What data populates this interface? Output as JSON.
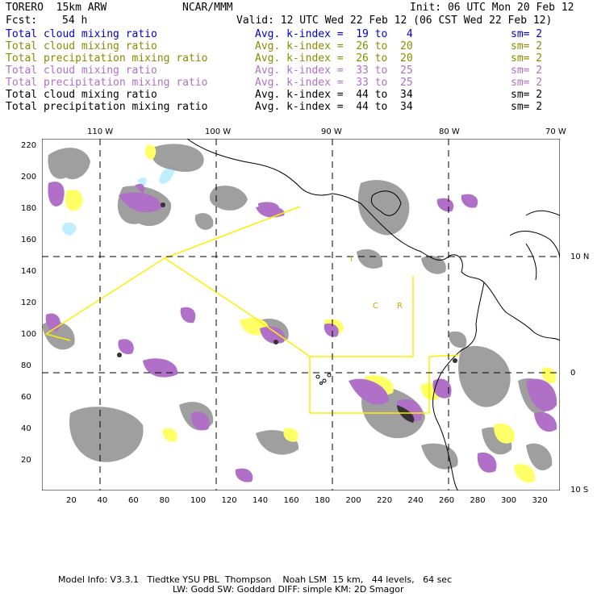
{
  "header": {
    "model": "TORERO  15km ARW",
    "org": "NCAR/MMM",
    "init": "Init: 06 UTC Mon 20 Feb 12",
    "fcst_label": "Fcst:",
    "fcst_value": "54 h",
    "valid": "Valid: 12 UTC Wed 22 Feb 12 (06 CST Wed 22 Feb 12)"
  },
  "legend": [
    {
      "name": "Total cloud mixing ratio",
      "kindex": "Avg. k-index =  19 to   4",
      "sm": "sm= 2",
      "color": "#0000cc"
    },
    {
      "name": "Total cloud mixing ratio",
      "kindex": "Avg. k-index =  26 to  20",
      "sm": "sm= 2",
      "color": "#8a8a00"
    },
    {
      "name": "Total precipitation mixing ratio",
      "kindex": "Avg. k-index =  26 to  20",
      "sm": "sm= 2",
      "color": "#8a8a00"
    },
    {
      "name": "Total cloud mixing ratio",
      "kindex": "Avg. k-index =  33 to  25",
      "sm": "sm= 2",
      "color": "#b070c8"
    },
    {
      "name": "Total precipitation mixing ratio",
      "kindex": "Avg. k-index =  33 to  25",
      "sm": "sm= 2",
      "color": "#b070c8"
    },
    {
      "name": "Total cloud mixing ratio",
      "kindex": "Avg. k-index =  44 to  34",
      "sm": "sm= 2",
      "color": "#000000"
    },
    {
      "name": "Total precipitation mixing ratio",
      "kindex": "Avg. k-index =  44 to  34",
      "sm": "sm= 2",
      "color": "#000000"
    }
  ],
  "axes": {
    "y_ticks": [
      "220",
      "200",
      "180",
      "160",
      "140",
      "120",
      "100",
      "80",
      "60",
      "40",
      "20"
    ],
    "x_ticks": [
      "20",
      "40",
      "60",
      "80",
      "100",
      "120",
      "140",
      "160",
      "180",
      "200",
      "220",
      "240",
      "260",
      "280",
      "300",
      "320"
    ],
    "lon_labels": [
      "110 W",
      "100 W",
      "90 W",
      "80 W",
      "70 W"
    ],
    "lat_labels": [
      "10 N",
      "0",
      "10 S"
    ]
  },
  "map_labels": {
    "ca_marker": "C",
    "ca_marker2": "R",
    "i_marker": "I"
  },
  "colors": {
    "gray_cloud": "#9a9a9a",
    "purple_precip": "#b070c8",
    "yellow_precip": "#ffff66",
    "cyan_cloud": "#bfefff",
    "domain_box": "#ffee00"
  },
  "footer": {
    "line1": "Model Info: V3.3.1   Tiedtke YSU PBL  Thompson    Noah LSM  15 km,   44 levels,   64 sec",
    "line2": "LW: Godd SW: Goddard DIFF: simple KM: 2D Smagor"
  }
}
